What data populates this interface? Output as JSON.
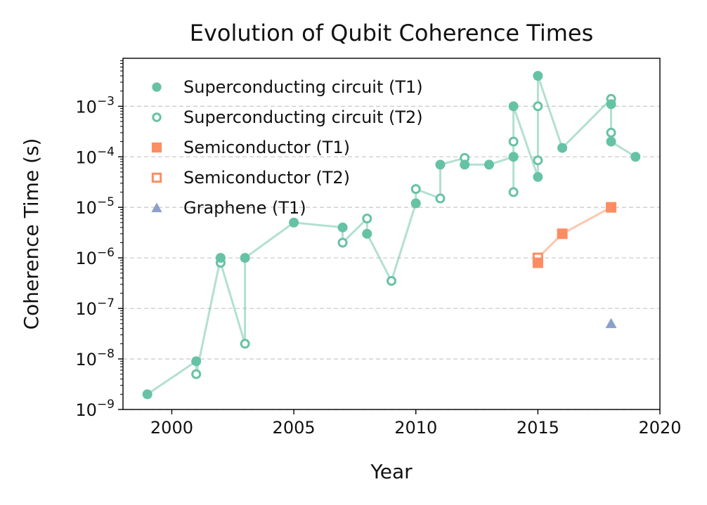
{
  "chart_data": {
    "type": "scatter",
    "title": "Evolution of Qubit Coherence Times",
    "xlabel": "Year",
    "ylabel": "Coherence Time (s)",
    "xlim": [
      1998,
      2020
    ],
    "ylim": [
      1e-09,
      0.0089
    ],
    "yscale": "log",
    "xticks": [
      "2000",
      "2005",
      "2010",
      "2015",
      "2020"
    ],
    "yticks": [
      {
        "value": 1e-09,
        "base": "10",
        "exp": "−9"
      },
      {
        "value": 1e-08,
        "base": "10",
        "exp": "−8"
      },
      {
        "value": 1e-07,
        "base": "10",
        "exp": "−7"
      },
      {
        "value": 1e-06,
        "base": "10",
        "exp": "−6"
      },
      {
        "value": 1e-05,
        "base": "10",
        "exp": "−5"
      },
      {
        "value": 0.0001,
        "base": "10",
        "exp": "−4"
      },
      {
        "value": 0.001,
        "base": "10",
        "exp": "−3"
      }
    ],
    "grid": "y-major-dashed",
    "legend_position": "top-left",
    "colors": {
      "superconducting": "#66c2a5",
      "semiconductor": "#fc8d62",
      "graphene": "#8da0cb"
    },
    "series": [
      {
        "name": "Superconducting circuit (T1)",
        "marker": "circle-filled",
        "color": "#66c2a5",
        "points": [
          {
            "x": 1999,
            "y": 2e-09
          },
          {
            "x": 2001,
            "y": 9e-09
          },
          {
            "x": 2002,
            "y": 1e-06
          },
          {
            "x": 2003,
            "y": 1e-06
          },
          {
            "x": 2005,
            "y": 5e-06
          },
          {
            "x": 2007,
            "y": 4e-06
          },
          {
            "x": 2008,
            "y": 3e-06
          },
          {
            "x": 2010,
            "y": 1.2e-05
          },
          {
            "x": 2011,
            "y": 7e-05
          },
          {
            "x": 2012,
            "y": 7e-05
          },
          {
            "x": 2013,
            "y": 7e-05
          },
          {
            "x": 2014,
            "y": 0.0001
          },
          {
            "x": 2014,
            "y": 0.001
          },
          {
            "x": 2015,
            "y": 4e-05
          },
          {
            "x": 2015,
            "y": 0.004
          },
          {
            "x": 2016,
            "y": 0.00015
          },
          {
            "x": 2018,
            "y": 0.0002
          },
          {
            "x": 2018,
            "y": 0.0011
          },
          {
            "x": 2019,
            "y": 0.0001
          }
        ]
      },
      {
        "name": "Superconducting circuit (T2)",
        "marker": "circle-open",
        "color": "#66c2a5",
        "points": [
          {
            "x": 2001,
            "y": 5e-09
          },
          {
            "x": 2002,
            "y": 8e-07
          },
          {
            "x": 2003,
            "y": 2e-08
          },
          {
            "x": 2007,
            "y": 2e-06
          },
          {
            "x": 2008,
            "y": 6e-06
          },
          {
            "x": 2009,
            "y": 3.5e-07
          },
          {
            "x": 2010,
            "y": 2.3e-05
          },
          {
            "x": 2011,
            "y": 1.5e-05
          },
          {
            "x": 2012,
            "y": 9.5e-05
          },
          {
            "x": 2014,
            "y": 2e-05
          },
          {
            "x": 2014,
            "y": 0.0002
          },
          {
            "x": 2015,
            "y": 8.5e-05
          },
          {
            "x": 2015,
            "y": 0.001
          },
          {
            "x": 2018,
            "y": 0.0003
          },
          {
            "x": 2018,
            "y": 0.0014
          }
        ]
      },
      {
        "name": "Semiconductor (T1)",
        "marker": "square-filled",
        "color": "#fc8d62",
        "points": [
          {
            "x": 2015,
            "y": 8e-07
          },
          {
            "x": 2016,
            "y": 3e-06
          },
          {
            "x": 2018,
            "y": 1e-05
          }
        ]
      },
      {
        "name": "Semiconductor (T2)",
        "marker": "square-open",
        "color": "#fc8d62",
        "points": [
          {
            "x": 2015,
            "y": 1e-06
          }
        ]
      },
      {
        "name": "Graphene (T1)",
        "marker": "triangle-filled",
        "color": "#8da0cb",
        "points": [
          {
            "x": 2018,
            "y": 5e-08
          }
        ]
      }
    ],
    "trend_lines": [
      {
        "name": "superconducting-trend",
        "color": "#66c2a5",
        "points": [
          {
            "x": 1999,
            "y": 2e-09
          },
          {
            "x": 2001,
            "y": 9e-09
          },
          {
            "x": 2001,
            "y": 5e-09
          },
          {
            "x": 2002,
            "y": 1e-06
          },
          {
            "x": 2002,
            "y": 8e-07
          },
          {
            "x": 2003,
            "y": 2e-08
          },
          {
            "x": 2003,
            "y": 1e-06
          },
          {
            "x": 2005,
            "y": 5e-06
          },
          {
            "x": 2007,
            "y": 4e-06
          },
          {
            "x": 2007,
            "y": 2e-06
          },
          {
            "x": 2008,
            "y": 6e-06
          },
          {
            "x": 2008,
            "y": 3e-06
          },
          {
            "x": 2009,
            "y": 3.5e-07
          },
          {
            "x": 2010,
            "y": 1.2e-05
          },
          {
            "x": 2010,
            "y": 2.3e-05
          },
          {
            "x": 2011,
            "y": 1.5e-05
          },
          {
            "x": 2011,
            "y": 7e-05
          },
          {
            "x": 2012,
            "y": 9.5e-05
          },
          {
            "x": 2012,
            "y": 7e-05
          },
          {
            "x": 2013,
            "y": 7e-05
          },
          {
            "x": 2014,
            "y": 0.0001
          },
          {
            "x": 2014,
            "y": 2e-05
          },
          {
            "x": 2014,
            "y": 0.0002
          },
          {
            "x": 2014,
            "y": 0.001
          },
          {
            "x": 2015,
            "y": 4e-05
          },
          {
            "x": 2015,
            "y": 8.5e-05
          },
          {
            "x": 2015,
            "y": 0.001
          },
          {
            "x": 2015,
            "y": 0.004
          },
          {
            "x": 2016,
            "y": 0.00015
          },
          {
            "x": 2018,
            "y": 0.0014
          },
          {
            "x": 2018,
            "y": 0.0011
          },
          {
            "x": 2018,
            "y": 0.0003
          },
          {
            "x": 2018,
            "y": 0.0002
          },
          {
            "x": 2019,
            "y": 0.0001
          }
        ]
      },
      {
        "name": "semiconductor-trend",
        "color": "#fc8d62",
        "points": [
          {
            "x": 2015,
            "y": 8e-07
          },
          {
            "x": 2015,
            "y": 1e-06
          },
          {
            "x": 2016,
            "y": 3e-06
          },
          {
            "x": 2018,
            "y": 1e-05
          }
        ]
      }
    ]
  }
}
